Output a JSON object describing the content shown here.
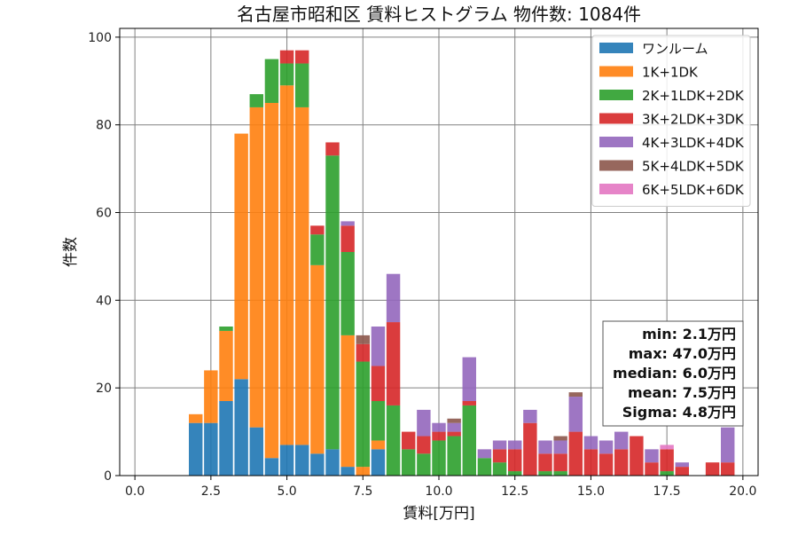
{
  "chart_data": {
    "type": "bar",
    "title": "名古屋市昭和区 賃料ヒストグラム 物件数: 1084件",
    "xlabel": "賃料[万円]",
    "ylabel": "件数",
    "xlim": [
      -0.5,
      20.5
    ],
    "ylim": [
      0,
      102
    ],
    "xticks": [
      0.0,
      2.5,
      5.0,
      7.5,
      10.0,
      12.5,
      15.0,
      17.5,
      20.0
    ],
    "xtick_labels": [
      "0.0",
      "2.5",
      "5.0",
      "7.5",
      "10.0",
      "12.5",
      "15.0",
      "17.5",
      "20.0"
    ],
    "yticks": [
      0,
      20,
      40,
      60,
      80,
      100
    ],
    "ytick_labels": [
      "0",
      "20",
      "40",
      "60",
      "80",
      "100"
    ],
    "grid": true,
    "stacked": true,
    "bin_width": 0.5,
    "bins": [
      2.0,
      2.5,
      3.0,
      3.5,
      4.0,
      4.5,
      5.0,
      5.5,
      6.0,
      6.5,
      7.0,
      7.5,
      8.0,
      8.5,
      9.0,
      9.5,
      10.0,
      10.5,
      11.0,
      11.5,
      12.0,
      12.5,
      13.0,
      13.5,
      14.0,
      14.5,
      15.0,
      15.5,
      16.0,
      16.5,
      17.0,
      17.5,
      18.0,
      18.5,
      19.0,
      19.5
    ],
    "legend_position": "top-right",
    "series": [
      {
        "name": "ワンルーム",
        "color": "#1f77b4",
        "values": [
          12,
          12,
          17,
          22,
          11,
          4,
          7,
          7,
          5,
          6,
          2,
          0,
          6,
          0,
          0,
          0,
          0,
          0,
          0,
          0,
          0,
          0,
          0,
          0,
          0,
          0,
          0,
          0,
          0,
          0,
          0,
          0,
          0,
          0,
          0,
          0
        ]
      },
      {
        "name": "1K+1DK",
        "color": "#ff7f0e",
        "values": [
          2,
          12,
          16,
          56,
          73,
          81,
          82,
          77,
          43,
          0,
          30,
          2,
          2,
          0,
          0,
          0,
          0,
          0,
          0,
          0,
          0,
          0,
          0,
          0,
          0,
          0,
          0,
          0,
          0,
          0,
          0,
          0,
          0,
          0,
          0,
          0
        ]
      },
      {
        "name": "2K+1LDK+2DK",
        "color": "#2ca02c",
        "values": [
          0,
          0,
          1,
          0,
          3,
          10,
          5,
          10,
          7,
          67,
          19,
          24,
          9,
          16,
          6,
          5,
          8,
          9,
          16,
          4,
          3,
          1,
          0,
          1,
          1,
          0,
          0,
          0,
          0,
          0,
          0,
          1,
          0,
          0,
          0,
          0
        ]
      },
      {
        "name": "3K+2LDK+3DK",
        "color": "#d62728",
        "values": [
          0,
          0,
          0,
          0,
          0,
          0,
          3,
          3,
          2,
          3,
          6,
          4,
          8,
          19,
          4,
          4,
          2,
          1,
          1,
          0,
          3,
          5,
          12,
          4,
          4,
          10,
          6,
          5,
          6,
          9,
          3,
          5,
          2,
          0,
          3,
          3
        ]
      },
      {
        "name": "4K+3LDK+4DK",
        "color": "#9467bd",
        "values": [
          0,
          0,
          0,
          0,
          0,
          0,
          0,
          0,
          0,
          0,
          1,
          0,
          9,
          11,
          0,
          6,
          2,
          2,
          10,
          2,
          2,
          2,
          3,
          3,
          3,
          8,
          3,
          3,
          4,
          0,
          3,
          0,
          1,
          0,
          0,
          8
        ]
      },
      {
        "name": "5K+4LDK+5DK",
        "color": "#8c564b",
        "values": [
          0,
          0,
          0,
          0,
          0,
          0,
          0,
          0,
          0,
          0,
          0,
          2,
          0,
          0,
          0,
          0,
          0,
          1,
          0,
          0,
          0,
          0,
          0,
          0,
          1,
          1,
          0,
          0,
          0,
          0,
          0,
          0,
          0,
          0,
          0,
          0
        ]
      },
      {
        "name": "6K+5LDK+6DK",
        "color": "#e377c2",
        "values": [
          0,
          0,
          0,
          0,
          0,
          0,
          0,
          0,
          0,
          0,
          0,
          0,
          0,
          0,
          0,
          0,
          0,
          0,
          0,
          0,
          0,
          0,
          0,
          0,
          0,
          0,
          0,
          0,
          0,
          0,
          0,
          1,
          0,
          0,
          0,
          0
        ]
      }
    ],
    "stats": [
      "min: 2.1万円",
      "max: 47.0万円",
      "median: 6.0万円",
      "mean: 7.5万円",
      "Sigma: 4.8万円"
    ]
  }
}
